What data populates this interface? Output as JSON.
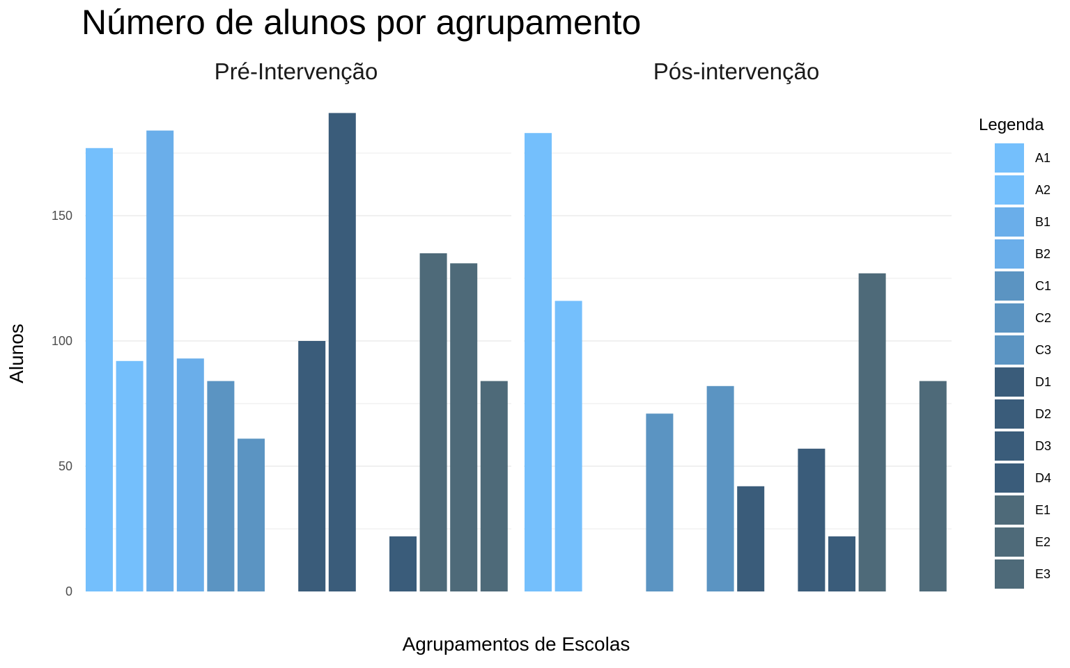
{
  "chart_data": {
    "type": "bar",
    "title": "Número de alunos por agrupamento",
    "xlabel": "Agrupamentos de Escolas",
    "ylabel": "Alunos",
    "ylim": [
      0,
      190
    ],
    "yticks": [
      0,
      50,
      100,
      150
    ],
    "grid": true,
    "legend": {
      "title": "Legenda",
      "position": "right",
      "entries": [
        {
          "label": "A1",
          "color": "#74bffc"
        },
        {
          "label": "A2",
          "color": "#74bffc"
        },
        {
          "label": "B1",
          "color": "#6aaeea"
        },
        {
          "label": "B2",
          "color": "#6aaeea"
        },
        {
          "label": "C1",
          "color": "#5b94c2"
        },
        {
          "label": "C2",
          "color": "#5b94c2"
        },
        {
          "label": "C3",
          "color": "#5b94c2"
        },
        {
          "label": "D1",
          "color": "#3a5c7a"
        },
        {
          "label": "D2",
          "color": "#3a5c7a"
        },
        {
          "label": "D3",
          "color": "#3a5c7a"
        },
        {
          "label": "D4",
          "color": "#3a5c7a"
        },
        {
          "label": "E1",
          "color": "#4e6a79"
        },
        {
          "label": "E2",
          "color": "#4e6a79"
        },
        {
          "label": "E3",
          "color": "#4e6a79"
        }
      ]
    },
    "categories": [
      "A1",
      "A2",
      "B1",
      "B2",
      "C1",
      "C2",
      "C3",
      "D1",
      "D2",
      "D3",
      "D4",
      "E1",
      "E2",
      "E3"
    ],
    "panels": [
      {
        "name": "Pré-Intervenção",
        "values": [
          177,
          92,
          184,
          93,
          84,
          61,
          null,
          100,
          191,
          null,
          22,
          135,
          131,
          84
        ]
      },
      {
        "name": "Pós-intervenção",
        "values": [
          183,
          116,
          null,
          null,
          71,
          null,
          82,
          42,
          null,
          57,
          22,
          127,
          null,
          84
        ]
      }
    ]
  }
}
